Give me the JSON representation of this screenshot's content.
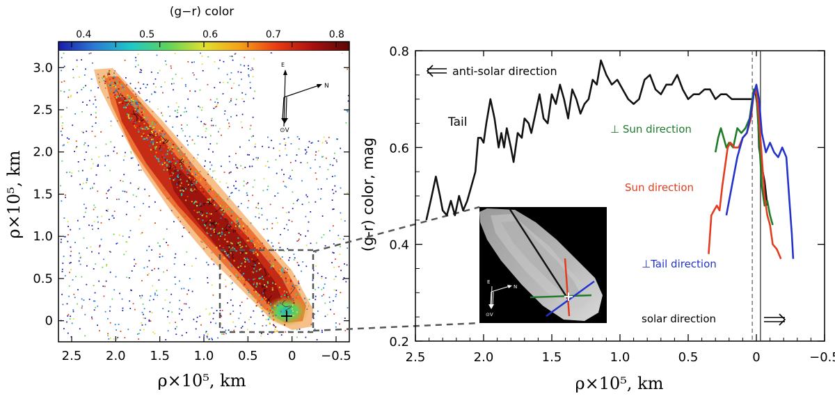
{
  "left_panel": {
    "colorbar": {
      "title": "(g−r)  color",
      "ticks": [
        "0.4",
        "0.5",
        "0.6",
        "0.7",
        "0.8"
      ],
      "tick_values": [
        0.4,
        0.5,
        0.6,
        0.7,
        0.8
      ],
      "range": [
        0.36,
        0.82
      ],
      "stops": [
        "#1a1aa8",
        "#2b7bd4",
        "#1fc8c8",
        "#5fd25a",
        "#e0e030",
        "#f5a01a",
        "#e83c14",
        "#a81010",
        "#5a0808"
      ]
    },
    "x_ticks": [
      "2.5",
      "2.0",
      "1.5",
      "1.0",
      "0.5",
      "0",
      "−0.5"
    ],
    "x_tick_values": [
      2.5,
      2.0,
      1.5,
      1.0,
      0.5,
      0.0,
      -0.5
    ],
    "x_range": [
      2.65,
      -0.65
    ],
    "y_ticks": [
      "0",
      "0.5",
      "1.0",
      "1.5",
      "2.0",
      "2.5",
      "3.0"
    ],
    "y_tick_values": [
      0,
      0.5,
      1.0,
      1.5,
      2.0,
      2.5,
      3.0
    ],
    "y_range": [
      -0.25,
      3.2
    ],
    "xlabel": "ρ×10⁵,  km",
    "ylabel": "ρ×10⁵,  km",
    "compass": {
      "e": "E",
      "n": "N",
      "v": "⊙V"
    }
  },
  "inset": {
    "compass": {
      "e": "E",
      "n": "N",
      "v": "⊙V"
    },
    "line_colors": {
      "tail": "#111111",
      "sun": "#e33b1e",
      "perp_sun": "#1f7a2a",
      "perp_tail": "#2233cc"
    }
  },
  "chart_data": {
    "type": "line",
    "title": "",
    "xlabel": "ρ×10⁵,  km",
    "ylabel": "(g-r) color, mag",
    "xlim": [
      2.5,
      -0.5
    ],
    "ylim": [
      0.2,
      0.8
    ],
    "x_ticks": [
      "2.5",
      "2.0",
      "1.5",
      "1.0",
      "0.5",
      "0",
      "−0.5"
    ],
    "x_tick_values": [
      2.5,
      2.0,
      1.5,
      1.0,
      0.5,
      0.0,
      -0.5
    ],
    "y_ticks": [
      "0.2",
      "0.4",
      "0.6",
      "0.8"
    ],
    "y_tick_values": [
      0.2,
      0.4,
      0.6,
      0.8
    ],
    "vertical_lines": [
      {
        "x": 0.03,
        "style": "dashed"
      },
      {
        "x": -0.03,
        "style": "solid"
      }
    ],
    "series": [
      {
        "name": "Tail",
        "color": "#111111",
        "x": [
          2.42,
          2.38,
          2.35,
          2.32,
          2.3,
          2.27,
          2.24,
          2.21,
          2.18,
          2.15,
          2.12,
          2.09,
          2.06,
          2.04,
          2.02,
          2.0,
          1.98,
          1.95,
          1.92,
          1.89,
          1.87,
          1.85,
          1.83,
          1.8,
          1.78,
          1.75,
          1.72,
          1.7,
          1.67,
          1.65,
          1.62,
          1.59,
          1.56,
          1.53,
          1.5,
          1.47,
          1.44,
          1.41,
          1.38,
          1.35,
          1.32,
          1.29,
          1.26,
          1.23,
          1.2,
          1.17,
          1.14,
          1.1,
          1.06,
          1.02,
          0.98,
          0.94,
          0.9,
          0.86,
          0.82,
          0.78,
          0.74,
          0.7,
          0.66,
          0.62,
          0.58,
          0.54,
          0.5,
          0.46,
          0.42,
          0.38,
          0.34,
          0.3,
          0.26,
          0.22,
          0.18,
          0.14,
          0.1,
          0.06,
          0.03,
          0.01,
          -0.01,
          -0.02,
          -0.04,
          -0.06,
          -0.08
        ],
        "y": [
          0.45,
          0.5,
          0.54,
          0.5,
          0.47,
          0.46,
          0.49,
          0.46,
          0.5,
          0.47,
          0.49,
          0.52,
          0.55,
          0.62,
          0.62,
          0.61,
          0.65,
          0.7,
          0.66,
          0.6,
          0.63,
          0.6,
          0.64,
          0.6,
          0.57,
          0.63,
          0.62,
          0.66,
          0.65,
          0.63,
          0.67,
          0.71,
          0.66,
          0.65,
          0.71,
          0.69,
          0.73,
          0.7,
          0.66,
          0.72,
          0.7,
          0.67,
          0.69,
          0.7,
          0.74,
          0.73,
          0.78,
          0.75,
          0.73,
          0.74,
          0.72,
          0.7,
          0.69,
          0.7,
          0.74,
          0.75,
          0.72,
          0.71,
          0.73,
          0.73,
          0.75,
          0.72,
          0.7,
          0.71,
          0.71,
          0.72,
          0.72,
          0.7,
          0.71,
          0.71,
          0.7,
          0.7,
          0.7,
          0.7,
          0.7,
          0.72,
          0.68,
          0.6,
          0.56,
          0.53,
          0.48
        ]
      },
      {
        "name": "⊥ Sun direction",
        "color": "#1f7a2a",
        "x": [
          0.3,
          0.28,
          0.26,
          0.24,
          0.22,
          0.2,
          0.17,
          0.14,
          0.11,
          0.08,
          0.05,
          0.02,
          0.0,
          -0.02,
          -0.04,
          -0.06,
          -0.08,
          -0.1,
          -0.12
        ],
        "y": [
          0.59,
          0.62,
          0.64,
          0.62,
          0.6,
          0.61,
          0.6,
          0.64,
          0.63,
          0.64,
          0.66,
          0.72,
          0.71,
          0.62,
          0.52,
          0.48,
          0.49,
          0.46,
          0.44
        ]
      },
      {
        "name": "Sun direction",
        "color": "#e33b1e",
        "x": [
          0.35,
          0.33,
          0.31,
          0.29,
          0.27,
          0.25,
          0.23,
          0.21,
          0.19,
          0.16,
          0.13,
          0.1,
          0.07,
          0.04,
          0.02,
          0.0,
          -0.02,
          -0.04,
          -0.06,
          -0.08,
          -0.1,
          -0.12,
          -0.15,
          -0.18
        ],
        "y": [
          0.38,
          0.46,
          0.47,
          0.48,
          0.47,
          0.52,
          0.56,
          0.6,
          0.61,
          0.6,
          0.6,
          0.62,
          0.63,
          0.66,
          0.71,
          0.72,
          0.66,
          0.58,
          0.5,
          0.46,
          0.44,
          0.4,
          0.39,
          0.37
        ]
      },
      {
        "name": "⊥Tail direction",
        "color": "#2233cc",
        "x": [
          0.22,
          0.18,
          0.14,
          0.1,
          0.07,
          0.04,
          0.02,
          0.0,
          -0.02,
          -0.04,
          -0.07,
          -0.1,
          -0.13,
          -0.16,
          -0.19,
          -0.22,
          -0.24,
          -0.26,
          -0.27
        ],
        "y": [
          0.46,
          0.52,
          0.58,
          0.62,
          0.63,
          0.67,
          0.71,
          0.73,
          0.7,
          0.63,
          0.59,
          0.61,
          0.59,
          0.58,
          0.6,
          0.58,
          0.5,
          0.42,
          0.37
        ]
      }
    ],
    "annotations": {
      "anti_solar": "anti-solar direction",
      "solar": "solar direction",
      "tail": "Tail",
      "perp_sun": "⊥ Sun direction",
      "sun": "Sun direction",
      "perp_tail": "⊥Tail direction"
    }
  }
}
